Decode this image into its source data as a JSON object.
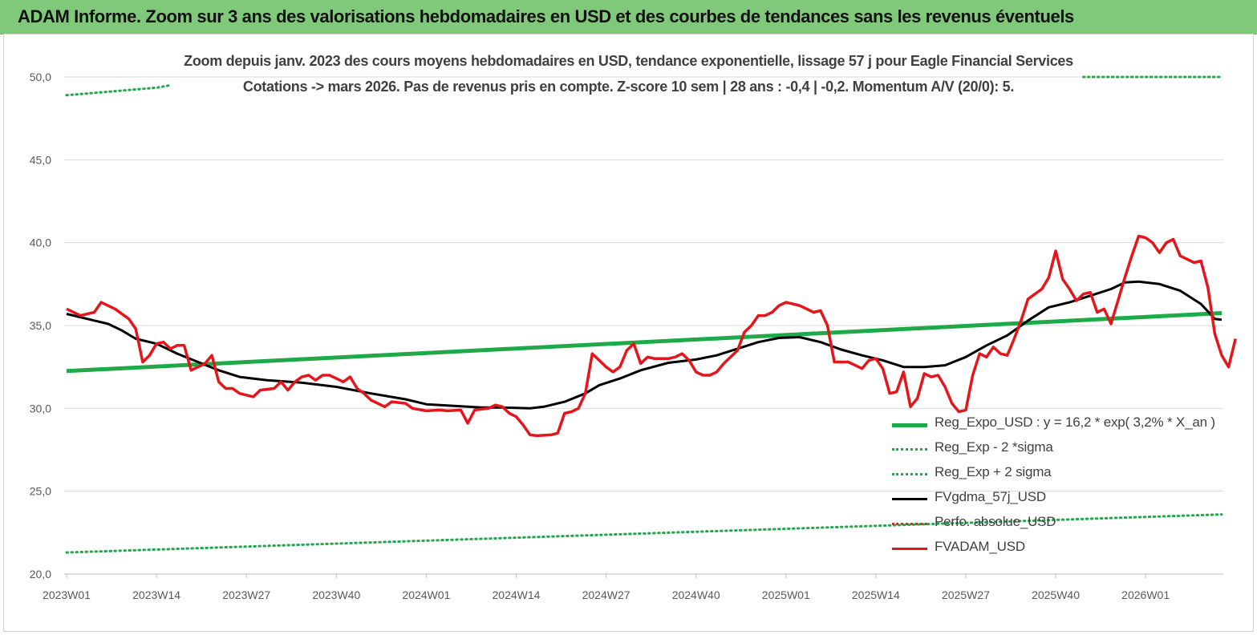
{
  "banner": {
    "title": "ADAM Informe. Zoom sur 3 ans des valorisations hebdomadaires en USD et des courbes de tendances sans les revenus éventuels"
  },
  "colors": {
    "banner_bg": "#80c97a",
    "regression": "#1faa4a",
    "fair_value": "#000000",
    "price": "#e5161b",
    "perf_absolue": "#c0392b",
    "grid": "#d9d9d9"
  },
  "chart_data": {
    "type": "line",
    "title_line1": "Zoom depuis janv. 2023 des cours moyens hebdomadaires en USD, tendance exponentielle, lissage 57 j pour Eagle Financial Services",
    "title_line2": "Cotations -> mars 2026. Pas de revenus pris en compte. Z-score 10 sem  | 28 ans : -0,4 | -0,2. Momentum A/V (20/0): 5.",
    "ylim": [
      20,
      50
    ],
    "yticks": [
      "20,0",
      "25,0",
      "30,0",
      "35,0",
      "40,0",
      "45,0",
      "50,0"
    ],
    "xticks": [
      "2023W01",
      "2023W14",
      "2023W27",
      "2023W40",
      "2024W01",
      "2024W14",
      "2024W27",
      "2024W40",
      "2025W01",
      "2025W14",
      "2025W27",
      "2025W40",
      "2026W01"
    ],
    "x_range": [
      "2023W01",
      "2026W12"
    ],
    "grid": "horizontal",
    "legend_position": "lower-right",
    "series": [
      {
        "name": "Reg_Expo_USD : y = 16,2 * exp( 3,2% *  X_an )",
        "style": "solid-thick",
        "color": "#1faa4a",
        "points": [
          [
            "2023W01",
            32.25
          ],
          [
            "2026W12",
            35.75
          ]
        ]
      },
      {
        "name": "Reg_Exp - 2 *sigma",
        "style": "dotted",
        "color": "#1faa4a",
        "points": [
          [
            "2023W01",
            21.3
          ],
          [
            "2026W12",
            23.6
          ]
        ]
      },
      {
        "name": "Reg_Exp + 2 sigma",
        "style": "dotted",
        "color": "#1faa4a",
        "points": [
          [
            "2023W01",
            48.9
          ],
          [
            "2023W14",
            49.35
          ],
          [
            "2023W16",
            49.5
          ],
          [
            "2025W44",
            50.0
          ],
          [
            "2026W12",
            50.0
          ]
        ]
      },
      {
        "name": "FVgdma_57j_USD",
        "style": "solid",
        "color": "#000000",
        "points": [
          [
            "2023W01",
            35.7
          ],
          [
            "2023W05",
            35.3
          ],
          [
            "2023W07",
            35.1
          ],
          [
            "2023W09",
            34.7
          ],
          [
            "2023W11",
            34.2
          ],
          [
            "2023W14",
            33.9
          ],
          [
            "2023W17",
            33.3
          ],
          [
            "2023W20",
            32.8
          ],
          [
            "2023W23",
            32.3
          ],
          [
            "2023W26",
            31.9
          ],
          [
            "2023W30",
            31.7
          ],
          [
            "2023W35",
            31.55
          ],
          [
            "2023W40",
            31.3
          ],
          [
            "2023W45",
            30.9
          ],
          [
            "2023W50",
            30.55
          ],
          [
            "2024W01",
            30.25
          ],
          [
            "2024W05",
            30.15
          ],
          [
            "2024W09",
            30.05
          ],
          [
            "2024W12",
            30.05
          ],
          [
            "2024W16",
            30.0
          ],
          [
            "2024W18",
            30.1
          ],
          [
            "2024W21",
            30.4
          ],
          [
            "2024W24",
            30.9
          ],
          [
            "2024W26",
            31.4
          ],
          [
            "2024W29",
            31.8
          ],
          [
            "2024W32",
            32.3
          ],
          [
            "2024W36",
            32.75
          ],
          [
            "2024W40",
            32.95
          ],
          [
            "2024W43",
            33.2
          ],
          [
            "2024W46",
            33.6
          ],
          [
            "2024W49",
            34.0
          ],
          [
            "2024W52",
            34.25
          ],
          [
            "2025W03",
            34.3
          ],
          [
            "2025W06",
            34.0
          ],
          [
            "2025W09",
            33.55
          ],
          [
            "2025W12",
            33.2
          ],
          [
            "2025W15",
            32.9
          ],
          [
            "2025W18",
            32.5
          ],
          [
            "2025W21",
            32.5
          ],
          [
            "2025W24",
            32.6
          ],
          [
            "2025W27",
            33.1
          ],
          [
            "2025W30",
            33.8
          ],
          [
            "2025W33",
            34.4
          ],
          [
            "2025W36",
            35.3
          ],
          [
            "2025W39",
            36.1
          ],
          [
            "2025W42",
            36.4
          ],
          [
            "2025W45",
            36.8
          ],
          [
            "2025W48",
            37.2
          ],
          [
            "2025W50",
            37.6
          ],
          [
            "2025W52",
            37.65
          ],
          [
            "2026W03",
            37.5
          ],
          [
            "2026W06",
            37.1
          ],
          [
            "2026W09",
            36.3
          ],
          [
            "2026W11",
            35.4
          ],
          [
            "2026W12",
            35.35
          ]
        ]
      },
      {
        "name": "Perfo. absolue_USD",
        "style": "dotted",
        "color": "#c0392b",
        "points": []
      },
      {
        "name": "FVADAM_USD",
        "style": "solid-thick",
        "color": "#e5161b",
        "points": [
          [
            "2023W01",
            36.0
          ],
          [
            "2023W03",
            35.6
          ],
          [
            "2023W05",
            35.8
          ],
          [
            "2023W06",
            36.4
          ],
          [
            "2023W08",
            36.0
          ],
          [
            "2023W10",
            35.4
          ],
          [
            "2023W11",
            34.8
          ],
          [
            "2023W12",
            32.8
          ],
          [
            "2023W13",
            33.2
          ],
          [
            "2023W14",
            33.9
          ],
          [
            "2023W15",
            34.0
          ],
          [
            "2023W16",
            33.6
          ],
          [
            "2023W17",
            33.8
          ],
          [
            "2023W18",
            33.8
          ],
          [
            "2023W19",
            32.3
          ],
          [
            "2023W21",
            32.7
          ],
          [
            "2023W22",
            33.2
          ],
          [
            "2023W23",
            31.6
          ],
          [
            "2023W24",
            31.2
          ],
          [
            "2023W25",
            31.2
          ],
          [
            "2023W26",
            30.9
          ],
          [
            "2023W28",
            30.7
          ],
          [
            "2023W29",
            31.1
          ],
          [
            "2023W31",
            31.2
          ],
          [
            "2023W32",
            31.6
          ],
          [
            "2023W33",
            31.1
          ],
          [
            "2023W34",
            31.6
          ],
          [
            "2023W35",
            31.9
          ],
          [
            "2023W36",
            32.0
          ],
          [
            "2023W37",
            31.7
          ],
          [
            "2023W38",
            32.0
          ],
          [
            "2023W39",
            32.0
          ],
          [
            "2023W40",
            31.8
          ],
          [
            "2023W41",
            31.6
          ],
          [
            "2023W42",
            31.9
          ],
          [
            "2023W43",
            31.2
          ],
          [
            "2023W44",
            30.9
          ],
          [
            "2023W45",
            30.5
          ],
          [
            "2023W47",
            30.1
          ],
          [
            "2023W48",
            30.4
          ],
          [
            "2023W50",
            30.3
          ],
          [
            "2023W51",
            30.0
          ],
          [
            "2024W01",
            29.85
          ],
          [
            "2024W03",
            29.9
          ],
          [
            "2024W04",
            29.85
          ],
          [
            "2024W06",
            29.9
          ],
          [
            "2024W07",
            29.1
          ],
          [
            "2024W08",
            29.9
          ],
          [
            "2024W10",
            30.0
          ],
          [
            "2024W11",
            30.2
          ],
          [
            "2024W12",
            30.1
          ],
          [
            "2024W13",
            29.7
          ],
          [
            "2024W14",
            29.5
          ],
          [
            "2024W15",
            29.0
          ],
          [
            "2024W16",
            28.4
          ],
          [
            "2024W17",
            28.35
          ],
          [
            "2024W19",
            28.4
          ],
          [
            "2024W20",
            28.5
          ],
          [
            "2024W21",
            29.7
          ],
          [
            "2024W22",
            29.8
          ],
          [
            "2024W23",
            30.0
          ],
          [
            "2024W24",
            30.9
          ],
          [
            "2024W25",
            33.3
          ],
          [
            "2024W26",
            32.9
          ],
          [
            "2024W27",
            32.5
          ],
          [
            "2024W28",
            32.2
          ],
          [
            "2024W29",
            32.5
          ],
          [
            "2024W30",
            33.5
          ],
          [
            "2024W31",
            33.9
          ],
          [
            "2024W32",
            32.7
          ],
          [
            "2024W33",
            33.1
          ],
          [
            "2024W34",
            33.0
          ],
          [
            "2024W36",
            33.0
          ],
          [
            "2024W37",
            33.1
          ],
          [
            "2024W38",
            33.3
          ],
          [
            "2024W39",
            32.9
          ],
          [
            "2024W40",
            32.2
          ],
          [
            "2024W41",
            32.0
          ],
          [
            "2024W42",
            32.0
          ],
          [
            "2024W43",
            32.2
          ],
          [
            "2024W44",
            32.7
          ],
          [
            "2024W46",
            33.5
          ],
          [
            "2024W47",
            34.6
          ],
          [
            "2024W48",
            35.0
          ],
          [
            "2024W49",
            35.6
          ],
          [
            "2024W50",
            35.6
          ],
          [
            "2024W51",
            35.8
          ],
          [
            "2024W52",
            36.2
          ],
          [
            "2025W01",
            36.4
          ],
          [
            "2025W02",
            36.3
          ],
          [
            "2025W03",
            36.2
          ],
          [
            "2025W04",
            36.0
          ],
          [
            "2025W05",
            35.8
          ],
          [
            "2025W06",
            35.9
          ],
          [
            "2025W07",
            35.0
          ],
          [
            "2025W08",
            32.8
          ],
          [
            "2025W09",
            32.8
          ],
          [
            "2025W10",
            32.8
          ],
          [
            "2025W11",
            32.6
          ],
          [
            "2025W12",
            32.4
          ],
          [
            "2025W13",
            32.9
          ],
          [
            "2025W14",
            33.0
          ],
          [
            "2025W15",
            32.4
          ],
          [
            "2025W16",
            30.9
          ],
          [
            "2025W17",
            31.0
          ],
          [
            "2025W18",
            32.2
          ],
          [
            "2025W19",
            30.1
          ],
          [
            "2025W20",
            30.6
          ],
          [
            "2025W21",
            32.1
          ],
          [
            "2025W22",
            31.9
          ],
          [
            "2025W23",
            32.0
          ],
          [
            "2025W24",
            31.3
          ],
          [
            "2025W25",
            30.3
          ],
          [
            "2025W26",
            29.8
          ],
          [
            "2025W27",
            29.9
          ],
          [
            "2025W28",
            32.0
          ],
          [
            "2025W29",
            33.3
          ],
          [
            "2025W30",
            33.1
          ],
          [
            "2025W31",
            33.7
          ],
          [
            "2025W32",
            33.3
          ],
          [
            "2025W33",
            33.2
          ],
          [
            "2025W34",
            34.2
          ],
          [
            "2025W35",
            35.3
          ],
          [
            "2025W36",
            36.6
          ],
          [
            "2025W37",
            36.9
          ],
          [
            "2025W38",
            37.2
          ],
          [
            "2025W39",
            37.9
          ],
          [
            "2025W40",
            39.5
          ],
          [
            "2025W41",
            37.8
          ],
          [
            "2025W42",
            37.2
          ],
          [
            "2025W43",
            36.5
          ],
          [
            "2025W44",
            36.9
          ],
          [
            "2025W45",
            37.0
          ],
          [
            "2025W46",
            35.8
          ],
          [
            "2025W47",
            36.0
          ],
          [
            "2025W48",
            35.1
          ],
          [
            "2025W49",
            36.5
          ],
          [
            "2025W50",
            37.9
          ],
          [
            "2025W51",
            39.2
          ],
          [
            "2025W52",
            40.4
          ],
          [
            "2026W01",
            40.3
          ],
          [
            "2026W02",
            40.0
          ],
          [
            "2026W03",
            39.4
          ],
          [
            "2026W04",
            40.0
          ],
          [
            "2026W05",
            40.2
          ],
          [
            "2026W06",
            39.2
          ],
          [
            "2026W07",
            39.0
          ],
          [
            "2026W08",
            38.8
          ],
          [
            "2026W09",
            38.9
          ],
          [
            "2026W10",
            37.3
          ],
          [
            "2026W11",
            34.5
          ],
          [
            "2026W12",
            33.2
          ],
          [
            "2026W13",
            32.5
          ],
          [
            "2026W14",
            34.2
          ]
        ]
      }
    ]
  }
}
